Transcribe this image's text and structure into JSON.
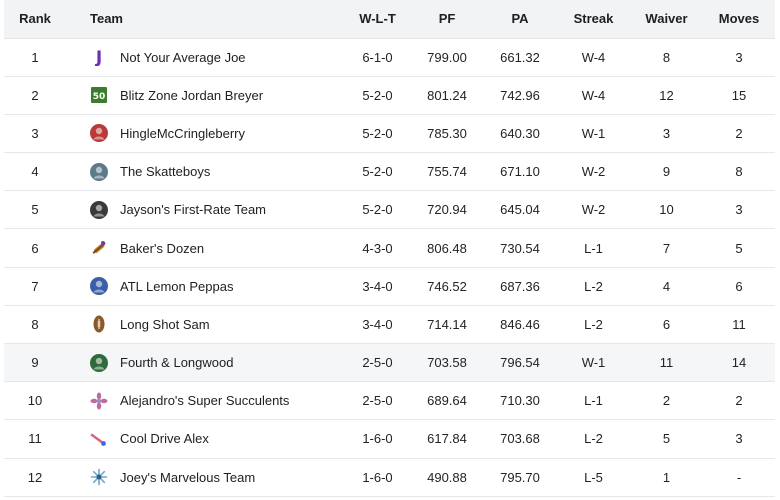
{
  "columns": {
    "rank": "Rank",
    "team": "Team",
    "wlt": "W-L-T",
    "pf": "PF",
    "pa": "PA",
    "streak": "Streak",
    "waiver": "Waiver",
    "moves": "Moves"
  },
  "teams": [
    {
      "rank": "1",
      "name": "Not Your Average Joe",
      "wlt": "6-1-0",
      "pf": "799.00",
      "pa": "661.32",
      "streak": "W-4",
      "waiver": "8",
      "moves": "3",
      "logo": "letter-j-icon",
      "color": "#6b2fb3"
    },
    {
      "rank": "2",
      "name": "Blitz Zone Jordan Breyer",
      "wlt": "5-2-0",
      "pf": "801.24",
      "pa": "742.96",
      "streak": "W-4",
      "waiver": "12",
      "moves": "15",
      "logo": "fifty-yard-icon",
      "color": "#3a7d2c"
    },
    {
      "rank": "3",
      "name": "HingleMcCringleberry",
      "wlt": "5-2-0",
      "pf": "785.30",
      "pa": "640.30",
      "streak": "W-1",
      "waiver": "3",
      "moves": "2",
      "logo": "avatar-photo-icon",
      "color": "#b83a3a"
    },
    {
      "rank": "4",
      "name": "The Skatteboys",
      "wlt": "5-2-0",
      "pf": "755.74",
      "pa": "671.10",
      "streak": "W-2",
      "waiver": "9",
      "moves": "8",
      "logo": "avatar-photo-icon",
      "color": "#5d7a8a"
    },
    {
      "rank": "5",
      "name": "Jayson's First-Rate Team",
      "wlt": "5-2-0",
      "pf": "720.94",
      "pa": "645.04",
      "streak": "W-2",
      "waiver": "10",
      "moves": "3",
      "logo": "avatar-photo-icon",
      "color": "#3a3a3a"
    },
    {
      "rank": "6",
      "name": "Baker's Dozen",
      "wlt": "4-3-0",
      "pf": "806.48",
      "pa": "730.54",
      "streak": "L-1",
      "waiver": "7",
      "moves": "5",
      "logo": "rolling-pin-icon",
      "color": "#c98a3a"
    },
    {
      "rank": "7",
      "name": "ATL Lemon Peppas",
      "wlt": "3-4-0",
      "pf": "746.52",
      "pa": "687.36",
      "streak": "L-2",
      "waiver": "4",
      "moves": "6",
      "logo": "avatar-photo-icon",
      "color": "#3a5ea8"
    },
    {
      "rank": "8",
      "name": "Long Shot Sam",
      "wlt": "3-4-0",
      "pf": "714.14",
      "pa": "846.46",
      "streak": "L-2",
      "waiver": "6",
      "moves": "11",
      "logo": "football-icon",
      "color": "#8a5a2b"
    },
    {
      "rank": "9",
      "name": "Fourth & Longwood",
      "wlt": "2-5-0",
      "pf": "703.58",
      "pa": "796.54",
      "streak": "W-1",
      "waiver": "11",
      "moves": "14",
      "logo": "avatar-photo-icon",
      "color": "#2f6b3a"
    },
    {
      "rank": "10",
      "name": "Alejandro's Super Succulents",
      "wlt": "2-5-0",
      "pf": "689.64",
      "pa": "710.30",
      "streak": "L-1",
      "waiver": "2",
      "moves": "2",
      "logo": "flower-icon",
      "color": "#c06a9a"
    },
    {
      "rank": "11",
      "name": "Cool Drive Alex",
      "wlt": "1-6-0",
      "pf": "617.84",
      "pa": "703.68",
      "streak": "L-2",
      "waiver": "5",
      "moves": "3",
      "logo": "comet-icon",
      "color": "#d9657a"
    },
    {
      "rank": "12",
      "name": "Joey's Marvelous Team",
      "wlt": "1-6-0",
      "pf": "490.88",
      "pa": "795.70",
      "streak": "L-5",
      "waiver": "1",
      "moves": "-",
      "logo": "star-burst-icon",
      "color": "#6fa8c9"
    }
  ],
  "highlight_rank": "9"
}
